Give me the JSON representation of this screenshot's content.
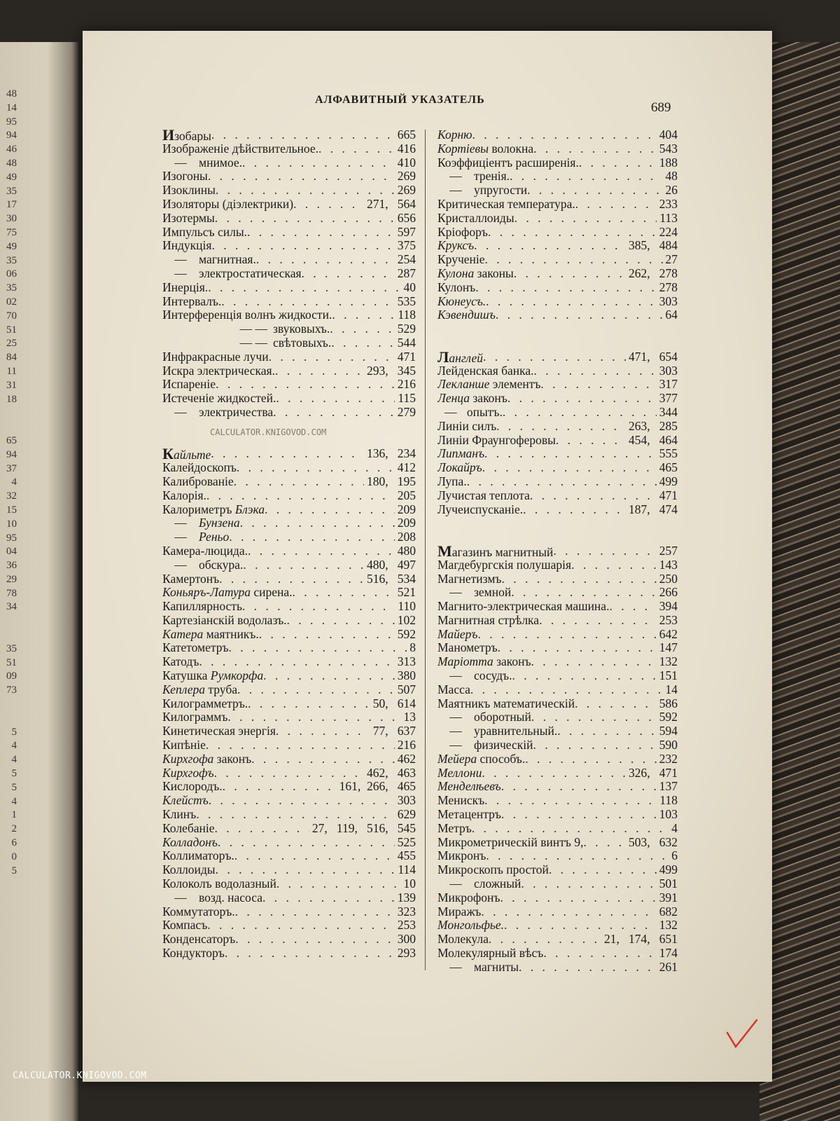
{
  "header": {
    "title": "АЛФАВИТНЫЙ УКАЗАТЕЛЬ",
    "page_number": "689"
  },
  "prev_page_numbers": [
    "48",
    "14",
    "95",
    "94",
    "46",
    "48",
    "49",
    "35",
    "17",
    "30",
    "75",
    "49",
    "35",
    "06",
    "35",
    "02",
    "70",
    "51",
    "25",
    "84",
    "11",
    "31",
    "18",
    "",
    "",
    "65",
    "94",
    "37",
    "4",
    "32",
    "15",
    "10",
    "95",
    "04",
    "36",
    "29",
    "78",
    "34",
    "",
    "",
    "35",
    "51",
    "09",
    "73",
    "",
    "",
    "5",
    "4",
    "4",
    "5",
    "5",
    "4",
    "1",
    "2",
    "6",
    "0",
    "5"
  ],
  "left_column": [
    {
      "letter": "И",
      "entries": [
        {
          "t": "Изобары",
          "p": "665"
        },
        {
          "t": "Изображеніе дѣйствительное.",
          "p": "416"
        },
        {
          "d": 1,
          "t": "мнимое.",
          "p": "410"
        },
        {
          "t": "Изогоны",
          "p": "269"
        },
        {
          "t": "Изоклины",
          "p": "269"
        },
        {
          "t": "Изоляторы (діэлектрики)",
          "p": "271,   564"
        },
        {
          "t": "Изотермы",
          "p": "656"
        },
        {
          "t": "Импульсъ силы.",
          "p": "597"
        },
        {
          "t": "Индукція",
          "p": "375"
        },
        {
          "d": 1,
          "t": "магнитная.",
          "p": "254"
        },
        {
          "d": 1,
          "t": "электростатическая",
          "p": "287"
        },
        {
          "t": "Инерція.",
          "p": "40"
        },
        {
          "t": "Интервалъ.",
          "p": "535"
        },
        {
          "t": "Интерференція волнъ жидкости.",
          "p": "118"
        },
        {
          "d": 2,
          "t": "звуковыхъ.",
          "p": "529"
        },
        {
          "d": 2,
          "t": "свѣтовыхъ.",
          "p": "544"
        },
        {
          "t": "Инфракрасные лучи",
          "p": "471"
        },
        {
          "t": "Искра электрическая.",
          "p": "293,   345"
        },
        {
          "t": "Испареніе",
          "p": "216"
        },
        {
          "t": "Истеченіе жидкостей.",
          "p": "115"
        },
        {
          "d": 1,
          "t": "электричества",
          "p": "279"
        }
      ]
    },
    {
      "letter": "К",
      "entries": [
        {
          "i": "Кайльте",
          "p": "136,   234"
        },
        {
          "t": "Калейдоскопъ",
          "p": "412"
        },
        {
          "t": "Калиброваніе",
          "p": "180,   195"
        },
        {
          "t": "Калорія.",
          "p": "205"
        },
        {
          "t": "Калориметръ",
          "i2": "Блэка",
          "p": "209"
        },
        {
          "d": 1,
          "i2": "Бунзена",
          "p": "209"
        },
        {
          "d": 1,
          "i2": "Реньо",
          "p": "208"
        },
        {
          "t": "Камера-люцида.",
          "p": "480"
        },
        {
          "d": 1,
          "t": "обскура.",
          "p": "480,   497"
        },
        {
          "t": "Камертонъ",
          "p": "516,   534"
        },
        {
          "i": "Коньяръ-Латура",
          "t": " сирена.",
          "p": "521"
        },
        {
          "t": "Капиллярность",
          "p": "110"
        },
        {
          "t": "Картезіанскій водолазъ.",
          "p": "102"
        },
        {
          "i": "Катера",
          "t": " маятникъ.",
          "p": "592"
        },
        {
          "t": "Катетометръ",
          "p": "8"
        },
        {
          "t": "Катодъ",
          "p": "313"
        },
        {
          "t": "Катушка",
          "i2": "Румкорфа",
          "p": "380"
        },
        {
          "i": "Кеплера",
          "t": " труба",
          "p": "507"
        },
        {
          "t": "Килограмметръ.",
          "p": "50,   614"
        },
        {
          "t": "Килограммъ",
          "p": "13"
        },
        {
          "t": "Кинетическая энергія",
          "p": "77,   637"
        },
        {
          "t": "Кипѣніе",
          "p": "216"
        },
        {
          "i": "Кирхгофа",
          "t": " законъ",
          "p": "462"
        },
        {
          "i": "Кирхгофъ",
          "p": "462,   463"
        },
        {
          "t": "Кислородъ.",
          "p": "161,  266,   465"
        },
        {
          "i": "Клейстъ",
          "p": "303"
        },
        {
          "t": "Клинъ",
          "p": "629"
        },
        {
          "t": "Колебаніе",
          "p": "27,   119,   516,   545"
        },
        {
          "i": "Колладонъ",
          "p": "525"
        },
        {
          "t": "Коллиматоръ.",
          "p": "455"
        },
        {
          "t": "Коллоиды",
          "p": "114"
        },
        {
          "t": "Колоколъ водолазный",
          "p": "10"
        },
        {
          "d": 1,
          "t": "возд. насоса",
          "p": "139"
        },
        {
          "t": "Коммутаторъ.",
          "p": "323"
        },
        {
          "t": "Компасъ",
          "p": "253"
        },
        {
          "t": "Конденсаторъ",
          "p": "300"
        },
        {
          "t": "Кондукторъ",
          "p": "293"
        }
      ]
    }
  ],
  "right_column": [
    {
      "letter": "",
      "entries": [
        {
          "i": "Корню",
          "p": "404"
        },
        {
          "i": "Кортіевы",
          "t": " волокна",
          "p": "543"
        },
        {
          "t": "Коэффиціентъ расширенія.",
          "p": "188"
        },
        {
          "d": 1,
          "t": "тренія.",
          "p": "48"
        },
        {
          "d": 1,
          "t": "упругости",
          "p": "26"
        },
        {
          "t": "Критическая температура.",
          "p": "233"
        },
        {
          "t": "Кристаллоиды",
          "p": "113"
        },
        {
          "t": "Кріофоръ",
          "p": "224"
        },
        {
          "i": "Круксъ",
          "p": "385,   484"
        },
        {
          "t": "Крученіе",
          "p": "27"
        },
        {
          "i": "Кулона",
          "t": " законы",
          "p": "262,   278"
        },
        {
          "t": "Кулонъ",
          "p": "278"
        },
        {
          "i": "Кюнеусъ.",
          "p": "303"
        },
        {
          "i": "Кэвендишъ",
          "p": "64"
        }
      ]
    },
    {
      "letter": "Л",
      "entries": [
        {
          "i": "Ланглей",
          "p": "471,   654"
        },
        {
          "t": "Лейденская банка.",
          "p": "303"
        },
        {
          "i": "Лекланше",
          "t": " элементъ",
          "p": "317"
        },
        {
          "i": "Ленца",
          "t": " законъ",
          "p": "377"
        },
        {
          "d": 3,
          "t": "опытъ.",
          "p": "344"
        },
        {
          "t": "Линіи силъ",
          "p": "263,   285"
        },
        {
          "t": "Линіи Фраунгоферовы",
          "p": "454,   464"
        },
        {
          "i": "Липманъ",
          "p": "555"
        },
        {
          "i": "Локайръ",
          "p": "465"
        },
        {
          "t": "Лупа.",
          "p": "499"
        },
        {
          "t": "Лучистая теплота",
          "p": "471"
        },
        {
          "t": "Лучеиспусканіе.",
          "p": "187,   474"
        }
      ]
    },
    {
      "letter": "М",
      "entries": [
        {
          "t": "Магазинъ магнитный",
          "p": "257"
        },
        {
          "t": "Магдебургскія полушарія",
          "p": "143"
        },
        {
          "t": "Магнетизмъ",
          "p": "250"
        },
        {
          "d": 1,
          "t": "земной",
          "p": "266"
        },
        {
          "t": "Магнито-электрическая машина.",
          "p": "394"
        },
        {
          "t": "Магнитная стрѣлка",
          "p": "253"
        },
        {
          "i": "Майеръ",
          "p": "642"
        },
        {
          "t": "Манометръ",
          "p": "147"
        },
        {
          "i": "Маріотта",
          "t": " законъ",
          "p": "132"
        },
        {
          "d": 1,
          "t": "сосудъ.",
          "p": "151"
        },
        {
          "t": "Масса",
          "p": "14"
        },
        {
          "t": "Маятникъ математическій",
          "p": "586"
        },
        {
          "d": 1,
          "t": "оборотный",
          "p": "592"
        },
        {
          "d": 1,
          "t": "уравнительный.",
          "p": "594"
        },
        {
          "d": 1,
          "t": "физическій",
          "p": "590"
        },
        {
          "i": "Мейера",
          "t": " способъ.",
          "p": "232"
        },
        {
          "i": "Меллони",
          "p": "326,   471"
        },
        {
          "i": "Менделѣевъ",
          "p": "137"
        },
        {
          "t": "Менискъ",
          "p": "118"
        },
        {
          "t": "Метацентръ",
          "p": "103"
        },
        {
          "t": "Метръ",
          "p": "4"
        },
        {
          "t": "Микрометрическій винтъ 9,",
          "p": "503,   632"
        },
        {
          "t": "Микронъ",
          "p": "6"
        },
        {
          "t": "Микроскопъ простой",
          "p": "499"
        },
        {
          "d": 1,
          "t": "сложный",
          "p": "501"
        },
        {
          "t": "Микрофонъ",
          "p": "391"
        },
        {
          "t": "Миражъ",
          "p": "682"
        },
        {
          "i": "Монгольфье.",
          "p": "132"
        },
        {
          "t": "Молекула",
          "p": "21,   174,   651"
        },
        {
          "t": "Молекулярный вѣсъ",
          "p": "174"
        },
        {
          "d": 1,
          "t": "магниты",
          "p": "261"
        }
      ]
    }
  ],
  "watermarks": {
    "bottom": "CALCULATOR.KNIGOVOD.COM",
    "center": "CALCULATOR.KNIGOVOD.COM"
  },
  "colors": {
    "paper": "#e9e3d3",
    "ink": "#1e1b18",
    "check_mark": "#d8332a"
  },
  "icons": {
    "check": "red-check-mark"
  }
}
